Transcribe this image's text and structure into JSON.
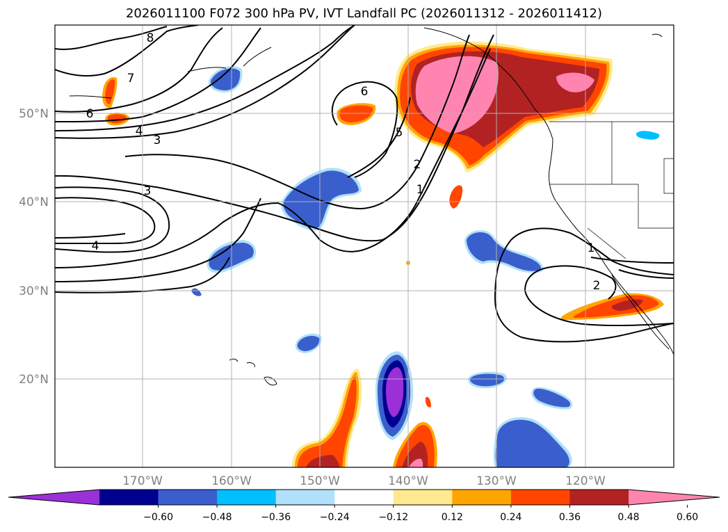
{
  "title": "2026011100 F072 300 hPa PV, IVT Landfall PC (2026011312 - 2026011412)",
  "lat_labels": [
    "50°N",
    "40°N",
    "30°N",
    "20°N"
  ],
  "lon_labels": [
    "170°W",
    "160°W",
    "150°W",
    "140°W",
    "130°W",
    "120°W"
  ],
  "contour_labels": [
    "8",
    "7",
    "6",
    "4",
    "3",
    "3",
    "4",
    "6",
    "5",
    "2",
    "1",
    "1",
    "2"
  ],
  "colorbar": {
    "ticks": [
      "−0.60",
      "−0.48",
      "−0.36",
      "−0.24",
      "−0.12",
      "0.12",
      "0.24",
      "0.36",
      "0.48",
      "0.60"
    ],
    "colors": [
      "#9b30d8",
      "#000090",
      "#3a5fcd",
      "#00bfff",
      "#b0e0fa",
      "#ffffff",
      "#ffea8f",
      "#ffa500",
      "#ff4500",
      "#b22222",
      "#ff85b0"
    ]
  }
}
